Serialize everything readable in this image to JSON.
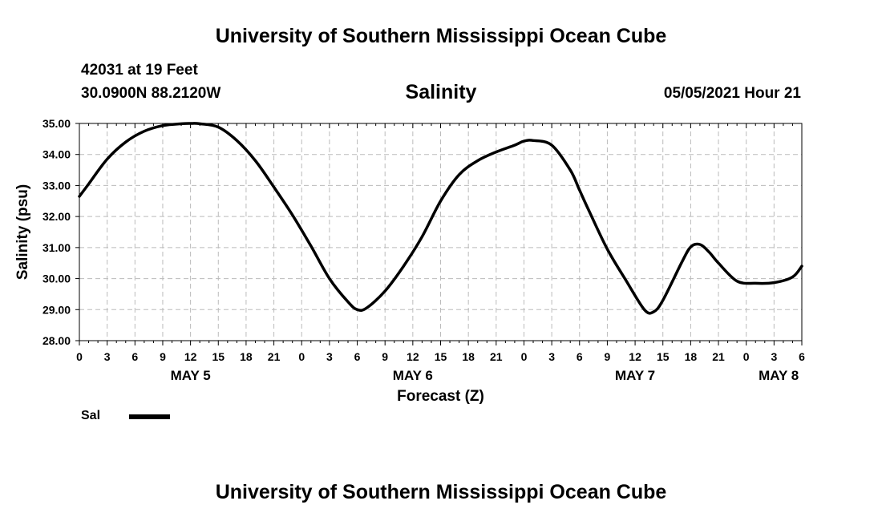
{
  "header": {
    "title": "University of Southern Mississippi Ocean Cube",
    "station": "42031 at 19 Feet",
    "coords": "30.0900N  88.2120W",
    "datetime": "05/05/2021 Hour 21"
  },
  "footer": {
    "title": "University of Southern Mississippi Ocean Cube"
  },
  "legend": {
    "label": "Sal"
  },
  "colors": {
    "line": "#000000",
    "grid": "#bbbbbb",
    "axis": "#000000"
  },
  "chart_data": {
    "type": "line",
    "title": "Salinity",
    "xlabel": "Forecast (Z)",
    "ylabel": "Salinity (psu)",
    "ylim": [
      28,
      35
    ],
    "xlim": [
      0,
      78
    ],
    "x_units": "hours since MAY 5 00Z",
    "grid": true,
    "yticks": [
      28,
      29,
      30,
      31,
      32,
      33,
      34,
      35
    ],
    "ytick_labels": [
      "28.00",
      "29.00",
      "30.00",
      "31.00",
      "32.00",
      "33.00",
      "34.00",
      "35.00"
    ],
    "xticks": [
      0,
      3,
      6,
      9,
      12,
      15,
      18,
      21,
      24,
      27,
      30,
      33,
      36,
      39,
      42,
      45,
      48,
      51,
      54,
      57,
      60,
      63,
      66,
      69,
      72,
      75,
      78
    ],
    "xtick_labels": [
      "0",
      "3",
      "6",
      "9",
      "12",
      "15",
      "18",
      "21",
      "0",
      "3",
      "6",
      "9",
      "12",
      "15",
      "18",
      "21",
      "0",
      "3",
      "6",
      "9",
      "12",
      "15",
      "18",
      "21",
      "0",
      "3",
      "6"
    ],
    "date_labels": [
      {
        "hour": 12,
        "label": "MAY 5"
      },
      {
        "hour": 36,
        "label": "MAY 6"
      },
      {
        "hour": 60,
        "label": "MAY 7"
      },
      {
        "hour": 75.5,
        "label": "MAY 8"
      }
    ],
    "series": [
      {
        "name": "Sal",
        "x": [
          0,
          1,
          3,
          5,
          7,
          9,
          11,
          12,
          13,
          15,
          17,
          19,
          21,
          23,
          25,
          27,
          29,
          30,
          31,
          33,
          35,
          37,
          39,
          41,
          43,
          45,
          47,
          48,
          49,
          51,
          53,
          54,
          55,
          57,
          59,
          61,
          62,
          63,
          65,
          66,
          67,
          68,
          69,
          71,
          73,
          75,
          77,
          78
        ],
        "values": [
          32.65,
          33.05,
          33.85,
          34.4,
          34.75,
          34.93,
          34.99,
          35.0,
          34.99,
          34.88,
          34.45,
          33.8,
          32.95,
          32.05,
          31.05,
          30.0,
          29.25,
          29.0,
          29.05,
          29.6,
          30.4,
          31.35,
          32.5,
          33.35,
          33.8,
          34.08,
          34.3,
          34.43,
          34.45,
          34.3,
          33.5,
          32.85,
          32.2,
          30.95,
          29.95,
          29.0,
          28.93,
          29.3,
          30.5,
          31.02,
          31.1,
          30.85,
          30.5,
          29.92,
          29.85,
          29.87,
          30.05,
          30.4
        ]
      }
    ]
  }
}
